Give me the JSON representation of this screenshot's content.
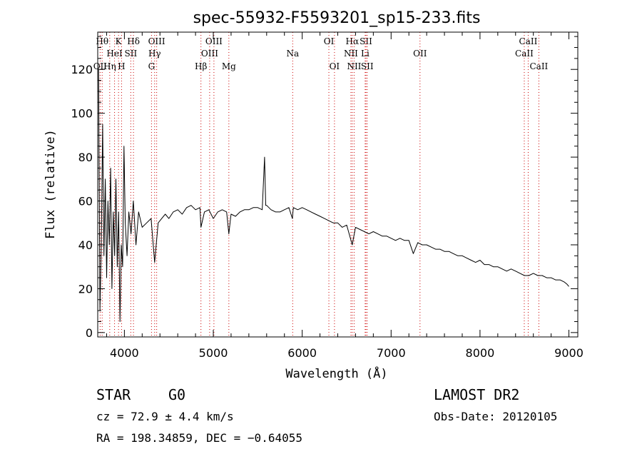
{
  "chart_data": {
    "type": "line",
    "title": "spec-55932-F5593201_sp15-233.fits",
    "xlabel": "Wavelength (Å)",
    "ylabel": "Flux (relative)",
    "xlim": [
      3700,
      9100
    ],
    "ylim": [
      -2,
      137
    ],
    "x_ticks": [
      4000,
      5000,
      6000,
      7000,
      8000,
      9000
    ],
    "y_ticks": [
      0,
      20,
      40,
      60,
      80,
      100,
      120
    ],
    "grid": false,
    "line_color": "#000000",
    "marker_color": "#cc0000",
    "series": [
      {
        "x": [
          3710,
          3725,
          3740,
          3755,
          3770,
          3785,
          3800,
          3815,
          3830,
          3845,
          3860,
          3875,
          3890,
          3905,
          3920,
          3935,
          3950,
          3965,
          3980,
          3995,
          4010,
          4030,
          4050,
          4075,
          4100,
          4130,
          4160,
          4200,
          4250,
          4300,
          4340,
          4380,
          4420,
          4460,
          4500,
          4550,
          4600,
          4650,
          4700,
          4750,
          4800,
          4850,
          4861,
          4900,
          4950,
          5000,
          5050,
          5100,
          5150,
          5175,
          5200,
          5250,
          5300,
          5350,
          5400,
          5450,
          5500,
          5550,
          5577,
          5590,
          5600,
          5650,
          5700,
          5750,
          5800,
          5850,
          5890,
          5900,
          5950,
          6000,
          6050,
          6100,
          6150,
          6200,
          6250,
          6300,
          6350,
          6400,
          6450,
          6500,
          6563,
          6600,
          6650,
          6700,
          6750,
          6800,
          6850,
          6900,
          6950,
          7000,
          7050,
          7100,
          7150,
          7200,
          7250,
          7300,
          7350,
          7400,
          7450,
          7500,
          7550,
          7600,
          7650,
          7700,
          7750,
          7800,
          7850,
          7900,
          7950,
          8000,
          8050,
          8100,
          8150,
          8200,
          8250,
          8300,
          8350,
          8400,
          8450,
          8500,
          8550,
          8600,
          8650,
          8700,
          8750,
          8800,
          8850,
          8900,
          8950,
          8980,
          9000
        ],
        "y": [
          120,
          10,
          40,
          95,
          35,
          70,
          25,
          60,
          40,
          75,
          20,
          55,
          35,
          70,
          30,
          55,
          5,
          40,
          30,
          85,
          50,
          35,
          55,
          45,
          60,
          40,
          55,
          48,
          50,
          52,
          32,
          50,
          52,
          54,
          52,
          55,
          56,
          54,
          57,
          58,
          56,
          57,
          48,
          55,
          56,
          52,
          55,
          56,
          55,
          45,
          54,
          53,
          55,
          56,
          56,
          57,
          57,
          56,
          80,
          58,
          58,
          56,
          55,
          55,
          56,
          57,
          52,
          57,
          56,
          57,
          56,
          55,
          54,
          53,
          52,
          51,
          50,
          50,
          48,
          49,
          40,
          48,
          47,
          46,
          45,
          46,
          45,
          44,
          44,
          43,
          42,
          43,
          42,
          42,
          36,
          41,
          40,
          40,
          39,
          38,
          38,
          37,
          37,
          36,
          35,
          35,
          34,
          33,
          32,
          33,
          31,
          31,
          30,
          30,
          29,
          28,
          29,
          28,
          27,
          26,
          26,
          27,
          26,
          26,
          25,
          25,
          24,
          24,
          23,
          22,
          21
        ]
      }
    ],
    "line_markers": [
      {
        "label": "Hθ",
        "x": 3750,
        "row": 1
      },
      {
        "label": "K",
        "x": 3934,
        "row": 1
      },
      {
        "label": "Hδ",
        "x": 4102,
        "row": 1
      },
      {
        "label": "OIII",
        "x": 4363,
        "row": 1
      },
      {
        "label": "OIII",
        "x": 5007,
        "row": 1
      },
      {
        "label": "OI",
        "x": 6300,
        "row": 1
      },
      {
        "label": "Hα",
        "x": 6563,
        "row": 1
      },
      {
        "label": "SII",
        "x": 6717,
        "row": 1
      },
      {
        "label": "CaII",
        "x": 8542,
        "row": 1
      },
      {
        "label": "HeI",
        "x": 3889,
        "row": 2
      },
      {
        "label": "SII",
        "x": 4072,
        "row": 2
      },
      {
        "label": "Hγ",
        "x": 4340,
        "row": 2
      },
      {
        "label": "OIII",
        "x": 4959,
        "row": 2
      },
      {
        "label": "Na",
        "x": 5893,
        "row": 2
      },
      {
        "label": "NII",
        "x": 6548,
        "row": 2
      },
      {
        "label": "Li",
        "x": 6708,
        "row": 2
      },
      {
        "label": "OII",
        "x": 7325,
        "row": 2
      },
      {
        "label": "CaII",
        "x": 8498,
        "row": 2
      },
      {
        "label": "OII",
        "x": 3727,
        "row": 3
      },
      {
        "label": "Hη",
        "x": 3835,
        "row": 3
      },
      {
        "label": "H",
        "x": 3968,
        "row": 3
      },
      {
        "label": "G",
        "x": 4305,
        "row": 3
      },
      {
        "label": "Hβ",
        "x": 4861,
        "row": 3
      },
      {
        "label": "Mg",
        "x": 5175,
        "row": 3
      },
      {
        "label": "OI",
        "x": 6363,
        "row": 3
      },
      {
        "label": "NII",
        "x": 6584,
        "row": 3
      },
      {
        "label": "SII",
        "x": 6731,
        "row": 3
      },
      {
        "label": "CaII",
        "x": 8662,
        "row": 3
      }
    ]
  },
  "info": {
    "object_class": "STAR",
    "subclass": "G0",
    "survey": "LAMOST DR2",
    "cz": "cz = 72.9 ± 4.4 km/s",
    "obs_date": "Obs-Date: 20120105",
    "coords": "RA = 198.34859, DEC =  −0.64055"
  }
}
